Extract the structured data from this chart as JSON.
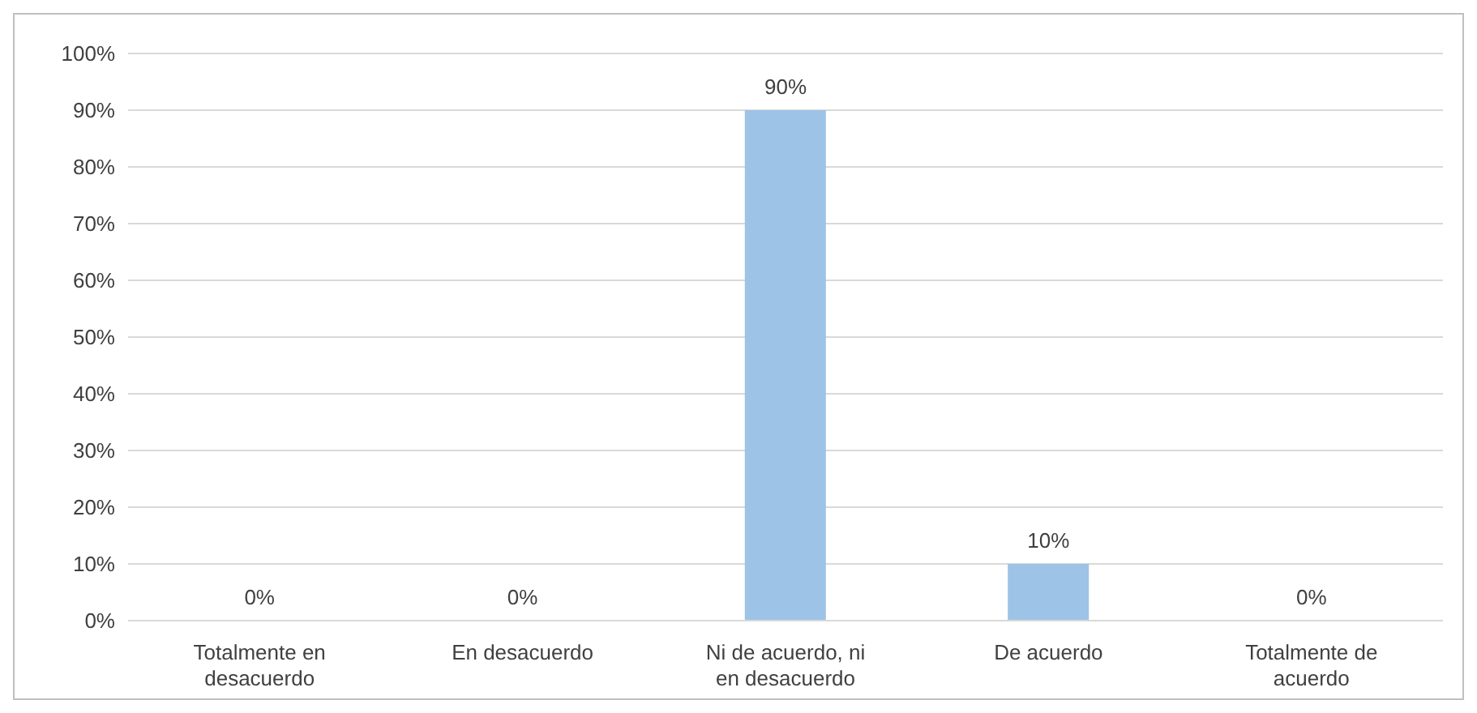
{
  "chart_data": {
    "type": "bar",
    "categories": [
      "Totalmente en desacuerdo",
      "En desacuerdo",
      "Ni de acuerdo, ni en desacuerdo",
      "De acuerdo",
      "Totalmente de acuerdo"
    ],
    "values": [
      0,
      0,
      90,
      10,
      0
    ],
    "color": "#9dc3e6",
    "value_labels": [
      "0%",
      "0%",
      "90%",
      "10%",
      "0%"
    ],
    "grid": "y",
    "legend": false,
    "ylim": [
      0,
      100
    ],
    "yticks": [
      {
        "value": 0,
        "label": "0%"
      },
      {
        "value": 10,
        "label": "10%"
      },
      {
        "value": 20,
        "label": "20%"
      },
      {
        "value": 30,
        "label": "30%"
      },
      {
        "value": 40,
        "label": "40%"
      },
      {
        "value": 50,
        "label": "50%"
      },
      {
        "value": 60,
        "label": "60%"
      },
      {
        "value": 70,
        "label": "70%"
      },
      {
        "value": 80,
        "label": "80%"
      },
      {
        "value": 90,
        "label": "90%"
      },
      {
        "value": 100,
        "label": "100%"
      }
    ]
  }
}
